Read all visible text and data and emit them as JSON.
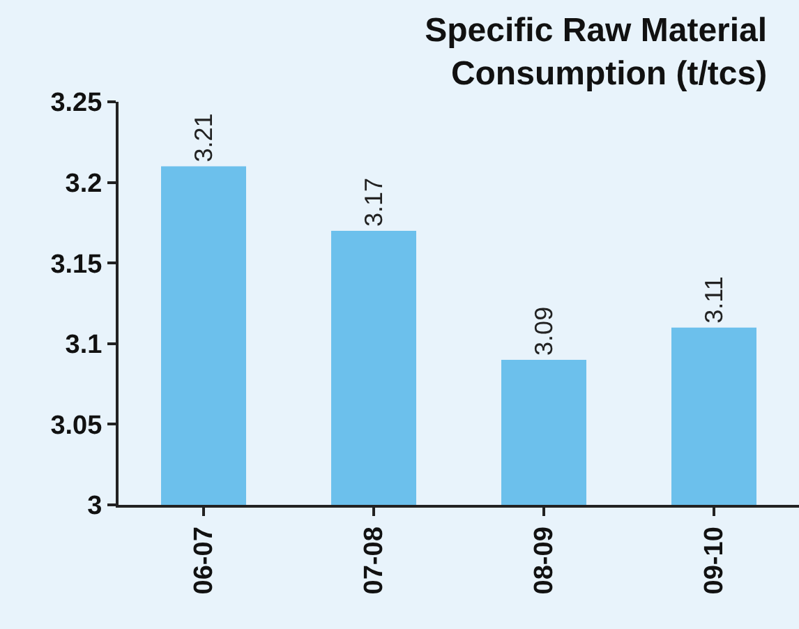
{
  "chart_data": {
    "type": "bar",
    "title": "Specific Raw Material\nConsumption (t/tcs)",
    "categories": [
      "06-07",
      "07-08",
      "08-09",
      "09-10"
    ],
    "values": [
      3.21,
      3.17,
      3.09,
      3.11
    ],
    "color": "#6cc0ec",
    "ylim": [
      3,
      3.25
    ],
    "yticks": [
      3,
      3.05,
      3.1,
      3.15,
      3.2,
      3.25
    ],
    "data_labels": true,
    "grid": false,
    "legend": false
  }
}
